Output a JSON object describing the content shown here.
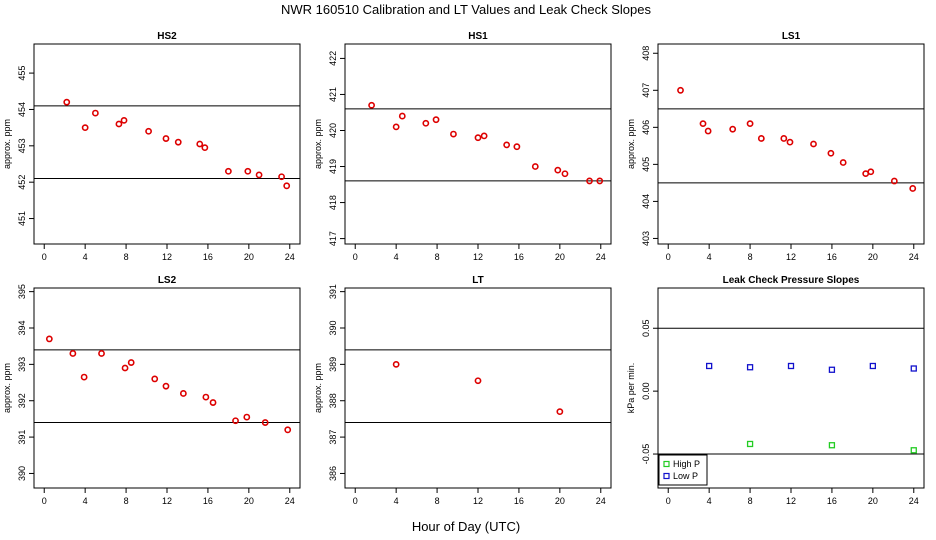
{
  "figure": {
    "title": "NWR  160510  Calibration and LT Values and Leak Check Slopes",
    "xlabel": "Hour of Day (UTC)"
  },
  "colors": {
    "red": "#dd0000",
    "green": "#22cc22",
    "blue": "#1111cc"
  },
  "chart_data": [
    {
      "type": "scatter",
      "title": "HS2",
      "ylabel": "approx. ppm",
      "xlim": [
        -1,
        25
      ],
      "ylim": [
        450.3,
        455.8
      ],
      "xticks": [
        0,
        4,
        8,
        12,
        16,
        20,
        24
      ],
      "yticks": [
        451,
        452,
        453,
        454,
        455
      ],
      "hlines": [
        454.1,
        452.1
      ],
      "series": [
        {
          "color": "red",
          "x": [
            2.2,
            4.0,
            5.0,
            7.3,
            7.8,
            10.2,
            11.9,
            13.1,
            15.2,
            15.7,
            18.0,
            19.9,
            21.0,
            23.2,
            23.7
          ],
          "y": [
            454.2,
            453.5,
            453.9,
            453.6,
            453.7,
            453.4,
            453.2,
            453.1,
            453.05,
            452.95,
            452.3,
            452.3,
            452.2,
            452.15,
            451.9
          ]
        }
      ]
    },
    {
      "type": "scatter",
      "title": "HS1",
      "ylabel": "approx. ppm",
      "xlim": [
        -1,
        25
      ],
      "ylim": [
        416.85,
        422.4
      ],
      "xticks": [
        0,
        4,
        8,
        12,
        16,
        20,
        24
      ],
      "yticks": [
        417,
        418,
        419,
        420,
        421,
        422
      ],
      "hlines": [
        420.6,
        418.6
      ],
      "series": [
        {
          "color": "red",
          "x": [
            1.6,
            4.0,
            4.6,
            6.9,
            7.9,
            9.6,
            12.0,
            12.6,
            14.8,
            15.8,
            17.6,
            19.8,
            20.5,
            22.9,
            23.9
          ],
          "y": [
            420.7,
            420.1,
            420.4,
            420.2,
            420.3,
            419.9,
            419.8,
            419.85,
            419.6,
            419.55,
            419.0,
            418.9,
            418.8,
            418.6,
            418.6
          ]
        }
      ]
    },
    {
      "type": "scatter",
      "title": "LS1",
      "ylabel": "approx. ppm",
      "xlim": [
        -1,
        25
      ],
      "ylim": [
        402.85,
        408.25
      ],
      "xticks": [
        0,
        4,
        8,
        12,
        16,
        20,
        24
      ],
      "yticks": [
        403,
        404,
        405,
        406,
        407,
        408
      ],
      "hlines": [
        406.5,
        404.5
      ],
      "series": [
        {
          "color": "red",
          "x": [
            1.2,
            3.4,
            3.9,
            6.3,
            8.0,
            9.1,
            11.3,
            11.9,
            14.2,
            15.9,
            17.1,
            19.3,
            19.8,
            22.1,
            23.9
          ],
          "y": [
            407.0,
            406.1,
            405.9,
            405.95,
            406.1,
            405.7,
            405.7,
            405.6,
            405.55,
            405.3,
            405.05,
            404.75,
            404.8,
            404.55,
            404.35
          ]
        }
      ]
    },
    {
      "type": "scatter",
      "title": "LS2",
      "ylabel": "approx. ppm",
      "xlim": [
        -1,
        25
      ],
      "ylim": [
        389.6,
        395.1
      ],
      "xticks": [
        0,
        4,
        8,
        12,
        16,
        20,
        24
      ],
      "yticks": [
        390,
        391,
        392,
        393,
        394,
        395
      ],
      "hlines": [
        393.4,
        391.4
      ],
      "series": [
        {
          "color": "red",
          "x": [
            0.5,
            2.8,
            3.9,
            5.6,
            7.9,
            8.5,
            10.8,
            11.9,
            13.6,
            15.8,
            16.5,
            18.7,
            19.8,
            21.6,
            23.8
          ],
          "y": [
            393.7,
            393.3,
            392.65,
            393.3,
            392.9,
            393.05,
            392.6,
            392.4,
            392.2,
            392.1,
            391.95,
            391.45,
            391.55,
            391.4,
            391.2
          ]
        }
      ]
    },
    {
      "type": "scatter",
      "title": "LT",
      "ylabel": "approx. ppm",
      "xlim": [
        -1,
        25
      ],
      "ylim": [
        385.6,
        391.1
      ],
      "xticks": [
        0,
        4,
        8,
        12,
        16,
        20,
        24
      ],
      "yticks": [
        386,
        387,
        388,
        389,
        390,
        391
      ],
      "hlines": [
        389.4,
        387.4
      ],
      "series": [
        {
          "color": "red",
          "x": [
            4.0,
            12.0,
            20.0
          ],
          "y": [
            389.0,
            388.55,
            387.7
          ]
        }
      ]
    },
    {
      "type": "scatter",
      "title": "Leak Check Pressure Slopes",
      "ylabel": "kPa per min.",
      "xlim": [
        -1,
        25
      ],
      "ylim": [
        -0.077,
        0.082
      ],
      "xticks": [
        0,
        4,
        8,
        12,
        16,
        20,
        24
      ],
      "yticks": [
        -0.05,
        0.0,
        0.05
      ],
      "ytick_labels": [
        "-0.05",
        "0.00",
        "0.05"
      ],
      "hlines": [
        0.05,
        -0.05
      ],
      "legend": {
        "placement": "bottom-left",
        "entries": [
          {
            "label": "High P",
            "color": "green"
          },
          {
            "label": "Low P",
            "color": "blue"
          }
        ]
      },
      "series": [
        {
          "name": "High P",
          "color": "green",
          "x": [
            8,
            16,
            24
          ],
          "y": [
            -0.042,
            -0.043,
            -0.047
          ]
        },
        {
          "name": "Low P",
          "color": "blue",
          "x": [
            4,
            8,
            12,
            16,
            20,
            24
          ],
          "y": [
            0.02,
            0.019,
            0.02,
            0.017,
            0.02,
            0.018
          ]
        }
      ]
    }
  ]
}
